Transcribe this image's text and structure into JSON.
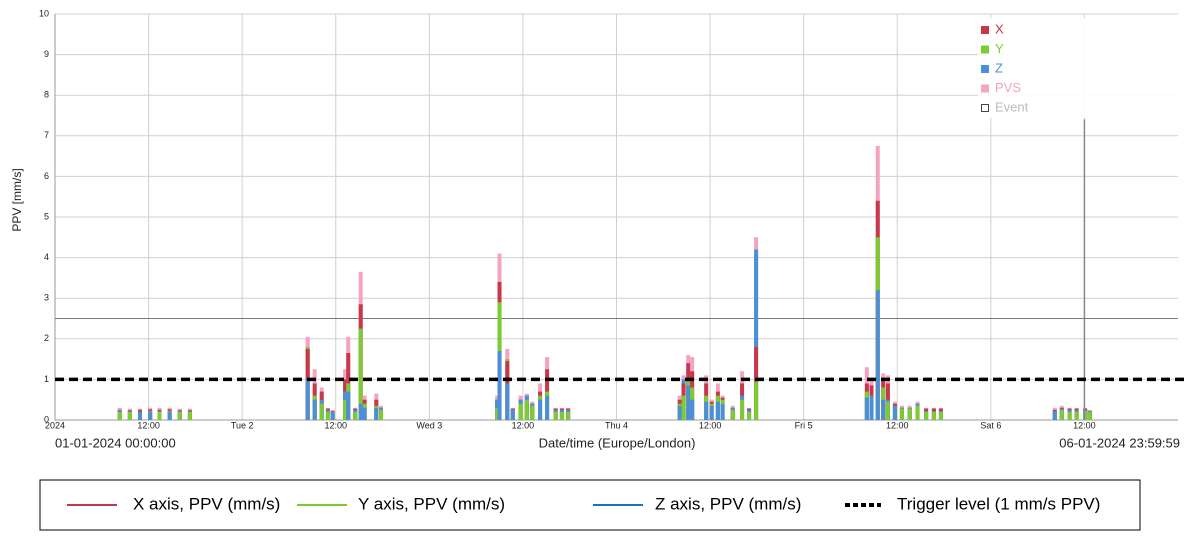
{
  "chart_data": {
    "type": "overlaid-bar",
    "y_axis_label": "PPV [mm/s]",
    "x_axis_label": "Date/time (Europe/London)",
    "range_start_label": "01-01-2024 00:00:00",
    "range_end_label": "06-01-2024 23:59:59",
    "xlim": [
      0,
      144
    ],
    "xticks": [
      {
        "value": 0,
        "label": "2024"
      },
      {
        "value": 12,
        "label": "12:00"
      },
      {
        "value": 24,
        "label": "Tue 2"
      },
      {
        "value": 36,
        "label": "12:00"
      },
      {
        "value": 48,
        "label": "Wed 3"
      },
      {
        "value": 60,
        "label": "12:00"
      },
      {
        "value": 72,
        "label": "Thu 4"
      },
      {
        "value": 84,
        "label": "12:00"
      },
      {
        "value": 96,
        "label": "Fri 5"
      },
      {
        "value": 108,
        "label": "12:00"
      },
      {
        "value": 120,
        "label": "Sat 6"
      },
      {
        "value": 132,
        "label": "12:00"
      }
    ],
    "ylim": [
      0,
      10
    ],
    "yticks": [
      0,
      1,
      2,
      3,
      4,
      5,
      6,
      7,
      8,
      9,
      10
    ],
    "grid": true,
    "x": [
      8.3,
      9.6,
      10.9,
      12.2,
      13.4,
      14.7,
      16,
      17.3,
      32.4,
      33.3,
      34.2,
      35,
      35.6,
      37.2,
      37.6,
      38.5,
      39.2,
      39.7,
      41.2,
      41.8,
      56.7,
      57,
      58,
      58.7,
      59.7,
      60.5,
      61.2,
      62.2,
      63.1,
      64.2,
      65,
      65.8,
      80.1,
      80.6,
      81.2,
      81.7,
      83.5,
      84.2,
      85,
      85.6,
      86.9,
      88.1,
      89,
      89.9,
      104.1,
      104.7,
      105.5,
      106.2,
      106.8,
      107.7,
      108.6,
      109.6,
      110.6,
      111.7,
      112.7,
      113.6,
      128.2,
      129.1,
      130.1,
      131,
      132.1,
      132.7
    ],
    "series": [
      {
        "name": "X",
        "color": "#c8374a",
        "values": [
          0.25,
          0.24,
          0.25,
          0.26,
          0.25,
          0.26,
          0.24,
          0.24,
          1.75,
          0.9,
          0.7,
          0.28,
          0.22,
          1.0,
          1.65,
          0.28,
          2.85,
          0.5,
          0.5,
          0.3,
          0.5,
          3.4,
          1.45,
          0.28,
          0.5,
          0.6,
          0.4,
          0.7,
          1.25,
          0.28,
          0.28,
          0.28,
          0.5,
          0.9,
          1.4,
          1.2,
          0.9,
          0.45,
          0.7,
          0.55,
          0.3,
          0.9,
          0.28,
          1.8,
          0.9,
          0.85,
          5.4,
          1.0,
          0.9,
          0.4,
          0.3,
          0.3,
          0.4,
          0.28,
          0.28,
          0.28,
          0.25,
          0.3,
          0.28,
          0.28,
          0.28,
          0.22
        ]
      },
      {
        "name": "Y",
        "color": "#7ccb32",
        "values": [
          0.2,
          0.2,
          0.2,
          0.22,
          0.2,
          0.22,
          0.2,
          0.2,
          1.8,
          0.6,
          0.4,
          0.2,
          0.2,
          0.5,
          0.9,
          0.2,
          2.25,
          0.4,
          0.35,
          0.25,
          0.3,
          2.9,
          1.5,
          0.25,
          0.4,
          0.5,
          0.35,
          0.6,
          0.7,
          0.2,
          0.2,
          0.2,
          0.4,
          0.6,
          0.95,
          0.8,
          0.6,
          0.4,
          0.6,
          0.5,
          0.25,
          0.5,
          0.2,
          0.95,
          0.7,
          0.6,
          4.5,
          0.8,
          0.45,
          0.35,
          0.28,
          0.28,
          0.35,
          0.2,
          0.2,
          0.2,
          0.22,
          0.25,
          0.2,
          0.2,
          0.22,
          0.2
        ]
      },
      {
        "name": "Z",
        "color": "#4a8fd8",
        "values": [
          0.24,
          0.22,
          0.2,
          0.2,
          0.22,
          0.2,
          0.22,
          0.22,
          1.0,
          0.5,
          0.5,
          0.25,
          0.2,
          0.7,
          0.7,
          0.25,
          0.4,
          0.3,
          0.3,
          0.3,
          0.5,
          1.7,
          0.9,
          0.25,
          0.5,
          0.6,
          0.4,
          0.5,
          0.6,
          0.25,
          0.25,
          0.25,
          0.35,
          1.0,
          0.85,
          0.5,
          0.45,
          0.35,
          0.45,
          0.4,
          0.3,
          0.6,
          0.25,
          4.2,
          0.55,
          0.6,
          3.2,
          0.5,
          0.5,
          0.35,
          0.3,
          0.3,
          0.4,
          0.22,
          0.22,
          0.22,
          0.22,
          0.28,
          0.25,
          0.25,
          0.25,
          0.22
        ]
      },
      {
        "name": "PVS",
        "color": "#f4a3c3",
        "values": [
          0.3,
          0.28,
          0.28,
          0.3,
          0.3,
          0.3,
          0.28,
          0.28,
          2.05,
          1.25,
          0.8,
          0.3,
          0.25,
          1.25,
          2.05,
          0.3,
          3.65,
          0.6,
          0.65,
          0.35,
          0.6,
          4.1,
          1.75,
          0.3,
          0.6,
          0.65,
          0.45,
          0.9,
          1.55,
          0.3,
          0.3,
          0.3,
          0.6,
          1.1,
          1.6,
          1.55,
          1.1,
          0.5,
          0.9,
          0.6,
          0.35,
          1.2,
          0.3,
          4.5,
          1.3,
          1.0,
          6.75,
          1.15,
          1.1,
          0.45,
          0.35,
          0.35,
          0.45,
          0.3,
          0.3,
          0.3,
          0.3,
          0.35,
          0.3,
          0.3,
          0.3,
          0.25
        ]
      }
    ],
    "event_series": {
      "name": "Event",
      "color": "#888888",
      "x": [
        132
      ],
      "values": [
        7.4
      ]
    },
    "reference_lines": [
      {
        "value": 2.5,
        "color": "#777777"
      }
    ],
    "trigger_line": {
      "value": 1,
      "color": "#000000"
    },
    "bottom_legend": [
      {
        "label": "X axis, PPV (mm/s)",
        "color": "#c8374a",
        "dashed": false
      },
      {
        "label": "Y axis, PPV (mm/s)",
        "color": "#7ccb32",
        "dashed": false
      },
      {
        "label": "Z axis, PPV (mm/s)",
        "color": "#1f6fbf",
        "dashed": false
      },
      {
        "label": "Trigger level (1 mm/s PPV)",
        "color": "#000000",
        "dashed": true
      }
    ]
  }
}
